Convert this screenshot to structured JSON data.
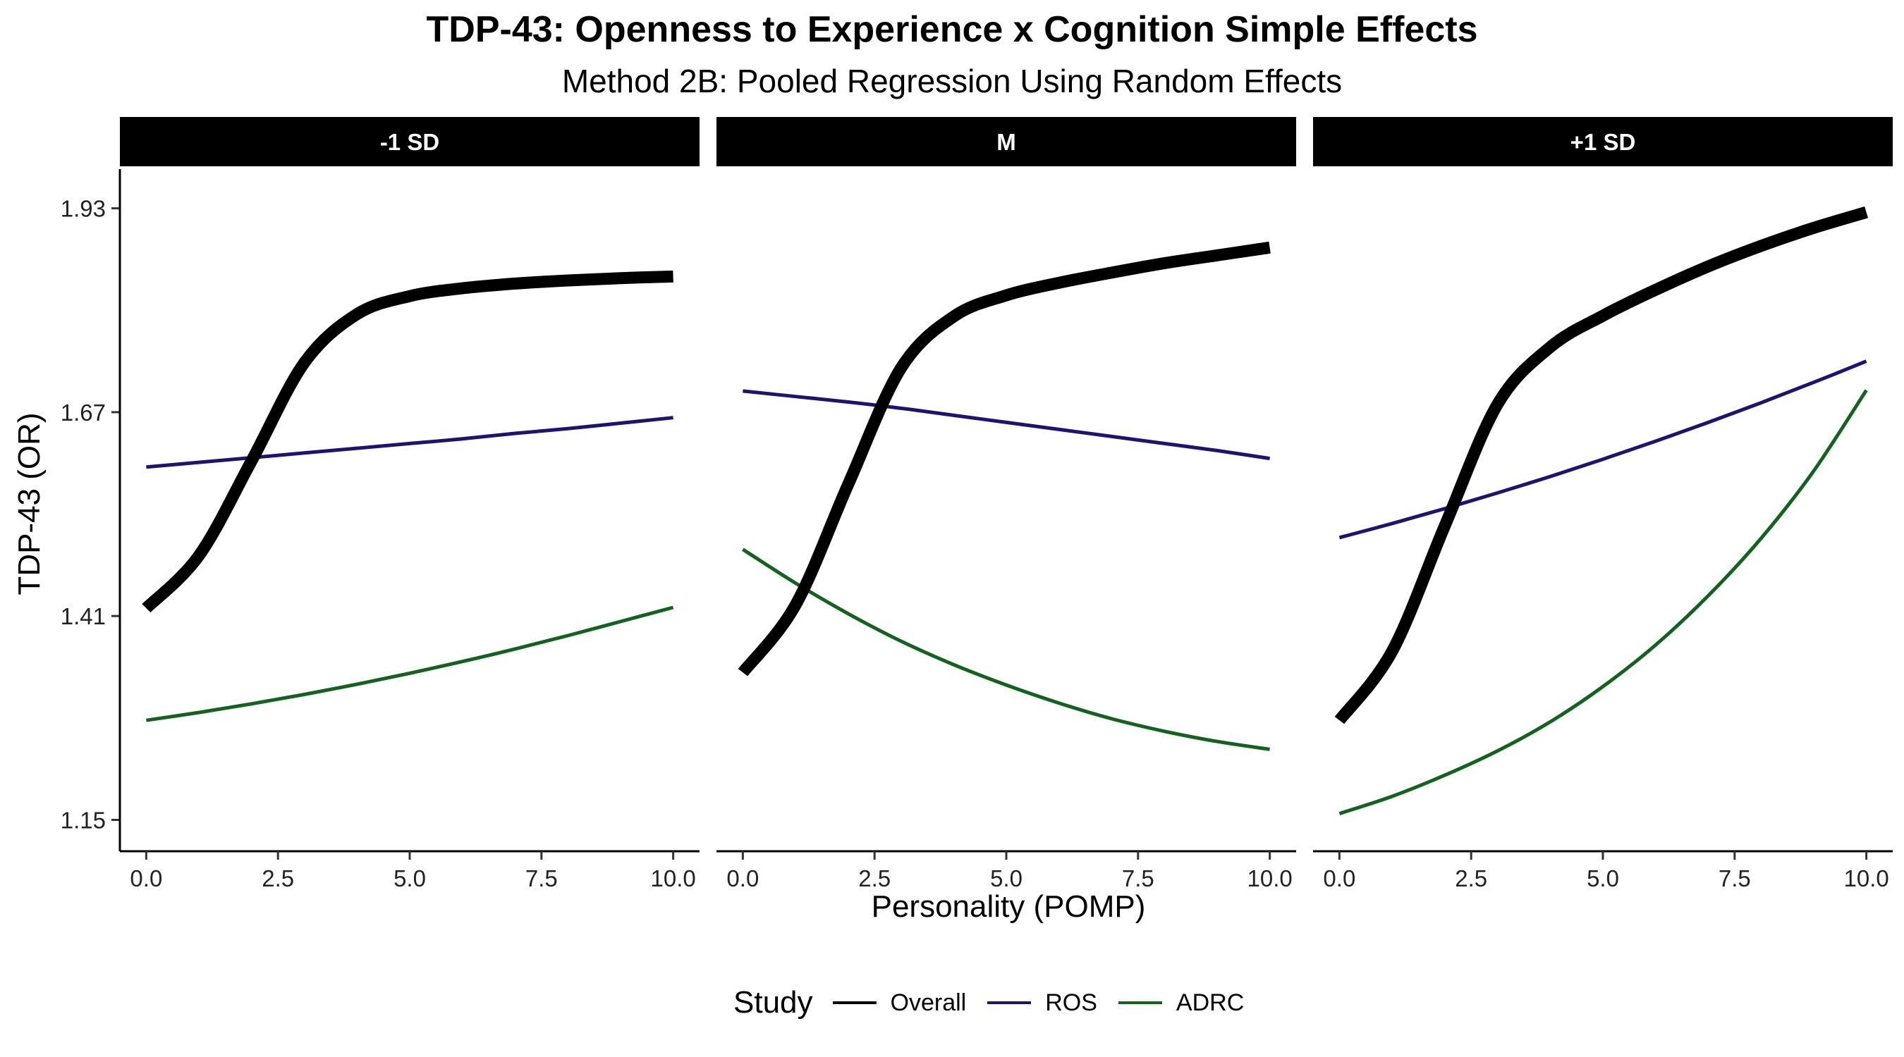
{
  "chart_data": {
    "type": "line",
    "title": "TDP-43: Openness to Experience x Cognition Simple Effects",
    "subtitle": "Method 2B: Pooled Regression Using Random Effects",
    "xlabel": "Personality (POMP)",
    "ylabel": "TDP-43 (OR)",
    "xlim": [
      -0.5,
      10.5
    ],
    "ylim": [
      1.11,
      1.98
    ],
    "x_ticks": [
      0.0,
      2.5,
      5.0,
      7.5,
      10.0
    ],
    "x_tick_labels": [
      "0.0",
      "2.5",
      "5.0",
      "7.5",
      "10.0"
    ],
    "y_ticks": [
      1.15,
      1.41,
      1.67,
      1.93
    ],
    "y_tick_labels": [
      "1.15",
      "1.41",
      "1.67",
      "1.93"
    ],
    "grid": false,
    "legend": {
      "title": "Study",
      "position": "bottom"
    },
    "x": [
      0,
      1,
      2,
      3,
      4,
      5,
      6,
      7,
      8,
      9,
      10
    ],
    "facets": [
      {
        "label": "-1 SD",
        "series": [
          {
            "name": "Overall",
            "color": "#000000",
            "width": "thick",
            "values": [
              1.42,
              1.487,
              1.608,
              1.733,
              1.795,
              1.818,
              1.828,
              1.834,
              1.838,
              1.841,
              1.843
            ]
          },
          {
            "name": "ROS",
            "color": "#1f1370",
            "width": "thin",
            "values": [
              1.6,
              1.606,
              1.612,
              1.618,
              1.624,
              1.63,
              1.636,
              1.643,
              1.649,
              1.656,
              1.663
            ]
          },
          {
            "name": "ADRC",
            "color": "#15611f",
            "width": "thin",
            "values": [
              1.277,
              1.287,
              1.298,
              1.31,
              1.323,
              1.337,
              1.352,
              1.368,
              1.385,
              1.403,
              1.421
            ]
          }
        ]
      },
      {
        "label": "M",
        "series": [
          {
            "name": "Overall",
            "color": "#000000",
            "width": "thick",
            "values": [
              1.338,
              1.424,
              1.578,
              1.726,
              1.792,
              1.819,
              1.835,
              1.848,
              1.86,
              1.87,
              1.88
            ]
          },
          {
            "name": "ROS",
            "color": "#1f1370",
            "width": "thin",
            "values": [
              1.697,
              1.69,
              1.683,
              1.675,
              1.666,
              1.657,
              1.648,
              1.639,
              1.63,
              1.621,
              1.611
            ]
          },
          {
            "name": "ADRC",
            "color": "#15611f",
            "width": "thin",
            "values": [
              1.495,
              1.452,
              1.413,
              1.378,
              1.348,
              1.322,
              1.299,
              1.279,
              1.263,
              1.25,
              1.24
            ]
          }
        ]
      },
      {
        "label": "+1 SD",
        "series": [
          {
            "name": "Overall",
            "color": "#000000",
            "width": "thick",
            "values": [
              1.277,
              1.365,
              1.525,
              1.68,
              1.753,
              1.793,
              1.826,
              1.856,
              1.882,
              1.905,
              1.925
            ]
          },
          {
            "name": "ROS",
            "color": "#1f1370",
            "width": "thin",
            "values": [
              1.51,
              1.528,
              1.547,
              1.567,
              1.588,
              1.61,
              1.633,
              1.657,
              1.682,
              1.708,
              1.735
            ]
          },
          {
            "name": "ADRC",
            "color": "#15611f",
            "width": "thin",
            "values": [
              1.158,
              1.18,
              1.207,
              1.238,
              1.275,
              1.32,
              1.373,
              1.436,
              1.509,
              1.595,
              1.698
            ]
          }
        ]
      }
    ]
  }
}
